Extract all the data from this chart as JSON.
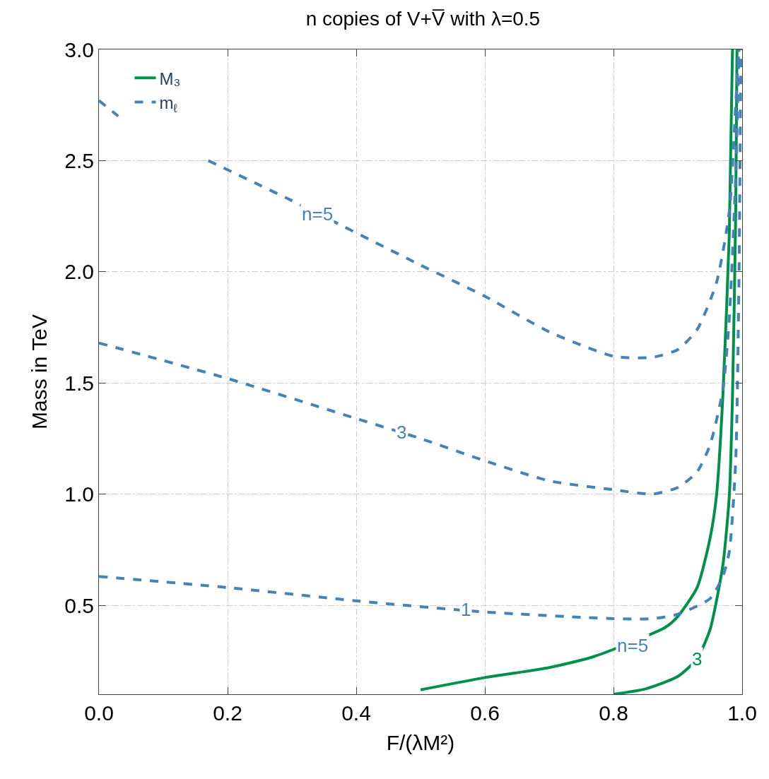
{
  "chart_data": {
    "type": "line",
    "title": "n copies of V+V̅ with λ=0.5",
    "xlabel": "F/(λM²)",
    "ylabel": "Mass in TeV",
    "xlim": [
      0,
      1
    ],
    "ylim": [
      0.1,
      3.0
    ],
    "xticks": [
      {
        "value": 0,
        "label": "0.0"
      },
      0.2,
      0.4,
      0.6,
      0.8,
      {
        "value": 1,
        "label": "1.0"
      }
    ],
    "yticks": [
      0.5,
      {
        "value": 1,
        "label": "1.0"
      },
      1.5,
      {
        "value": 2,
        "label": "2.0"
      },
      2.5,
      {
        "value": 3,
        "label": "3.0"
      }
    ],
    "grid": true,
    "legend": "top left",
    "series": [
      {
        "name": "M₃",
        "color": "#00904a",
        "line_style": "solid",
        "x": [
          0.5,
          0.6,
          0.7,
          0.77,
          0.88,
          0.9,
          0.93,
          0.95,
          0.96,
          0.97,
          0.98,
          0.985
        ],
        "values": [
          0.12,
          0.175,
          0.22,
          0.27,
          0.4,
          0.45,
          0.58,
          0.8,
          0.99,
          1.44,
          2.17,
          3.0
        ]
      },
      {
        "color": "#00904a",
        "line_style": "solid",
        "x": [
          0.8,
          0.85,
          0.9,
          0.93,
          0.95,
          0.97,
          0.98,
          0.985,
          0.99,
          0.992
        ],
        "values": [
          0.1,
          0.124,
          0.18,
          0.26,
          0.39,
          0.68,
          0.99,
          1.44,
          2.27,
          3.0
        ]
      },
      {
        "name": "m$_{ℓ}$",
        "color": "#4682b4",
        "line_style": "dashed",
        "x": [
          0,
          0.03,
          0.1,
          0.17,
          0.3,
          0.5,
          0.6,
          0.7,
          0.8,
          0.86,
          0.9,
          0.93,
          0.96,
          0.98,
          0.99,
          0.995
        ],
        "values": [
          2.77,
          2.7,
          null,
          2.5,
          2.32,
          2.03,
          1.89,
          1.73,
          1.62,
          1.615,
          1.65,
          1.74,
          1.95,
          2.27,
          2.75,
          3.0
        ]
      },
      {
        "color": "#4682b4",
        "line_style": "dashed",
        "x": [
          0,
          0.2,
          0.4,
          0.5,
          0.6,
          0.7,
          0.8,
          0.86,
          0.9,
          0.93,
          0.95,
          0.97,
          0.98,
          0.99,
          0.995
        ],
        "values": [
          1.68,
          1.52,
          1.34,
          1.25,
          1.15,
          1.06,
          1.02,
          1.0,
          1.03,
          1.1,
          1.22,
          1.47,
          1.79,
          2.43,
          3.0
        ]
      },
      {
        "color": "#4682b4",
        "line_style": "dashed",
        "x": [
          0,
          0.2,
          0.4,
          0.6,
          0.8,
          0.86,
          0.9,
          0.95,
          0.97,
          0.98,
          0.99,
          0.995,
          0.998
        ],
        "values": [
          0.63,
          0.58,
          0.52,
          0.47,
          0.44,
          0.44,
          0.46,
          0.53,
          0.63,
          0.74,
          1.15,
          1.95,
          3.0
        ]
      }
    ],
    "annotations": [
      {
        "text": "n=5",
        "x": 0.34,
        "y": 2.26
      },
      {
        "text": "3",
        "x": 0.47,
        "y": 1.28
      },
      {
        "text": "1",
        "x": 0.57,
        "y": 0.48
      },
      {
        "text": "n=5",
        "x": 0.83,
        "y": 0.32
      },
      {
        "text": "3",
        "x": 0.93,
        "y": 0.26
      }
    ]
  }
}
